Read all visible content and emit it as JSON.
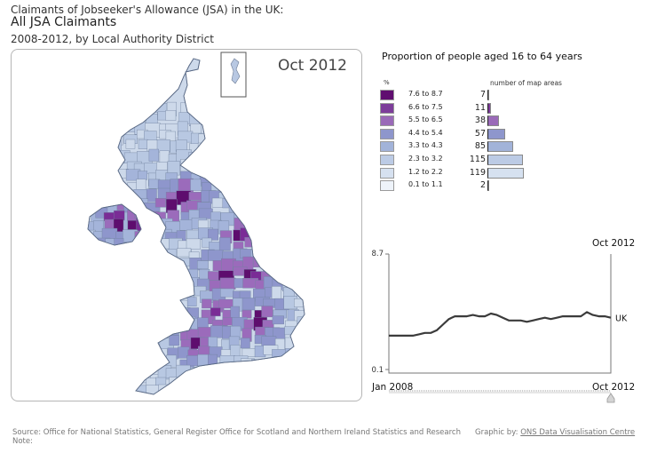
{
  "header": {
    "title_small": "Claimants of Jobseeker's Allowance (JSA) in the UK:",
    "title_main": "All JSA Claimants",
    "subtitle": "2008-2012, by Local Authority District"
  },
  "map": {
    "date_label": "Oct 2012",
    "region_colors": [
      "#cdd9ea",
      "#b8c8e2",
      "#a4b4da",
      "#8e96cc",
      "#9b6bbb",
      "#7a2c96",
      "#5e0d6e"
    ]
  },
  "legend": {
    "title": "Proportion of people aged 16 to 64 years",
    "pct_header": "%",
    "count_header": "number of map areas",
    "rows": [
      {
        "range": "7.6 to 8.7",
        "count": "7",
        "color": "#600e70"
      },
      {
        "range": "6.6 to 7.5",
        "count": "11",
        "color": "#7d3d9a"
      },
      {
        "range": "5.5 to 6.5",
        "count": "38",
        "color": "#9a6ab8"
      },
      {
        "range": "4.4 to 5.4",
        "count": "57",
        "color": "#8e96cc"
      },
      {
        "range": "3.3 to 4.3",
        "count": "85",
        "color": "#a2b3d9"
      },
      {
        "range": "2.3 to 3.2",
        "count": "115",
        "color": "#bccbe5"
      },
      {
        "range": "1.2 to 2.2",
        "count": "119",
        "color": "#d6e1f0"
      },
      {
        "range": "0.1 to 1.1",
        "count": "2",
        "color": "#eef3fa"
      }
    ]
  },
  "chart_data": {
    "type": "line",
    "series": [
      {
        "name": "UK",
        "values": [
          2.8,
          2.8,
          2.8,
          2.8,
          2.8,
          2.9,
          3.0,
          3.0,
          3.2,
          3.6,
          4.0,
          4.2,
          4.2,
          4.2,
          4.3,
          4.2,
          4.2,
          4.4,
          4.3,
          4.1,
          3.9,
          3.9,
          3.9,
          3.8,
          3.9,
          4.0,
          4.1,
          4.0,
          4.1,
          4.2,
          4.2,
          4.2,
          4.2,
          4.5,
          4.3,
          4.2,
          4.2,
          4.1
        ]
      }
    ],
    "ylim": [
      0.1,
      8.7
    ],
    "ytick_labels": [
      "8.7",
      "0.1"
    ],
    "x_start_label": "Jan 2008",
    "x_end_label": "Oct 2012",
    "end_label_top": "Oct 2012",
    "series_label": "UK"
  },
  "footer": {
    "source": "Source: Office for National Statistics, General Register Office for Scotland and Northern Ireland Statistics and Research",
    "note": "Note:",
    "credit_prefix": "Graphic by:",
    "credit_link": "ONS Data Visualisation Centre"
  }
}
